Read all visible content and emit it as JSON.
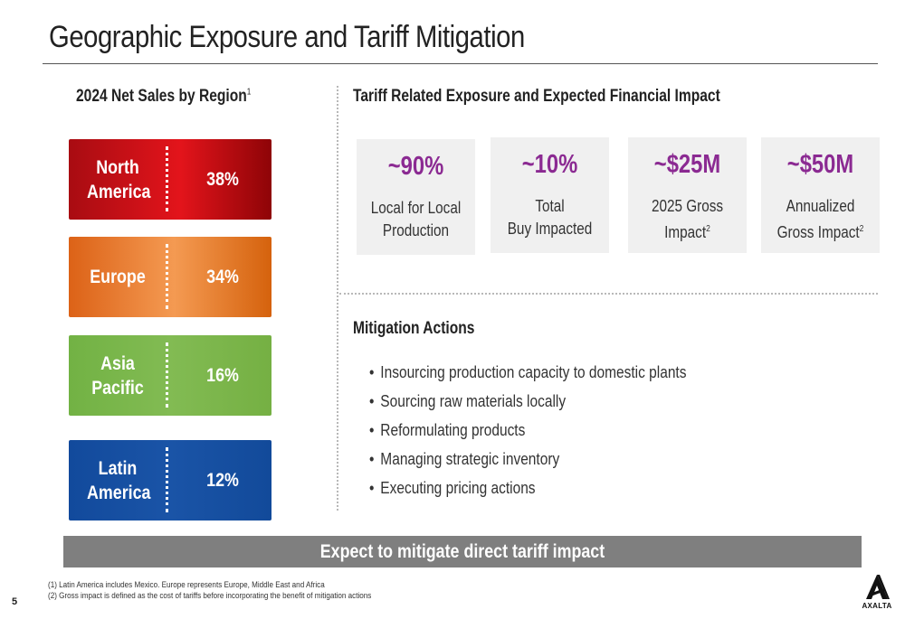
{
  "title": "Geographic Exposure and Tariff Mitigation",
  "left_section": {
    "heading": "2024 Net Sales by Region",
    "heading_note": "1",
    "regions": [
      {
        "name": "North America",
        "pct": "38%",
        "value": 38,
        "color": "#d6121a"
      },
      {
        "name": "Europe",
        "pct": "34%",
        "value": 34,
        "color": "#ec7a2c"
      },
      {
        "name": "Asia Pacific",
        "pct": "16%",
        "value": 16,
        "color": "#7ab74a"
      },
      {
        "name": "Latin America",
        "pct": "12%",
        "value": 12,
        "color": "#164f9f"
      }
    ]
  },
  "right_section": {
    "heading": "Tariff Related Exposure and Expected Financial Impact",
    "cards": [
      {
        "value": "~90%",
        "line1": "Local for Local",
        "line2": "Production",
        "note": ""
      },
      {
        "value": "~10%",
        "line1": "Total",
        "line2": "Buy Impacted",
        "note": ""
      },
      {
        "value": "~$25M",
        "line1": "2025 Gross",
        "line2": "Impact",
        "note": "2"
      },
      {
        "value": "~$50M",
        "line1": "Annualized",
        "line2": "Gross Impact",
        "note": "2"
      }
    ],
    "accent_color": "#8b2a92"
  },
  "mitigation": {
    "heading": "Mitigation Actions",
    "items": [
      "Insourcing production capacity to domestic plants",
      "Sourcing raw materials locally",
      "Reformulating products",
      "Managing strategic inventory",
      "Executing pricing actions"
    ]
  },
  "banner": "Expect to mitigate direct tariff impact",
  "footnotes": [
    "(1)  Latin America includes Mexico.  Europe represents Europe, Middle East and Africa",
    "(2) Gross impact is defined as the cost of tariffs before incorporating the benefit of mitigation actions"
  ],
  "page_number": "5",
  "logo": {
    "text": "AXALTA",
    "icon": "axalta-logo-icon"
  }
}
